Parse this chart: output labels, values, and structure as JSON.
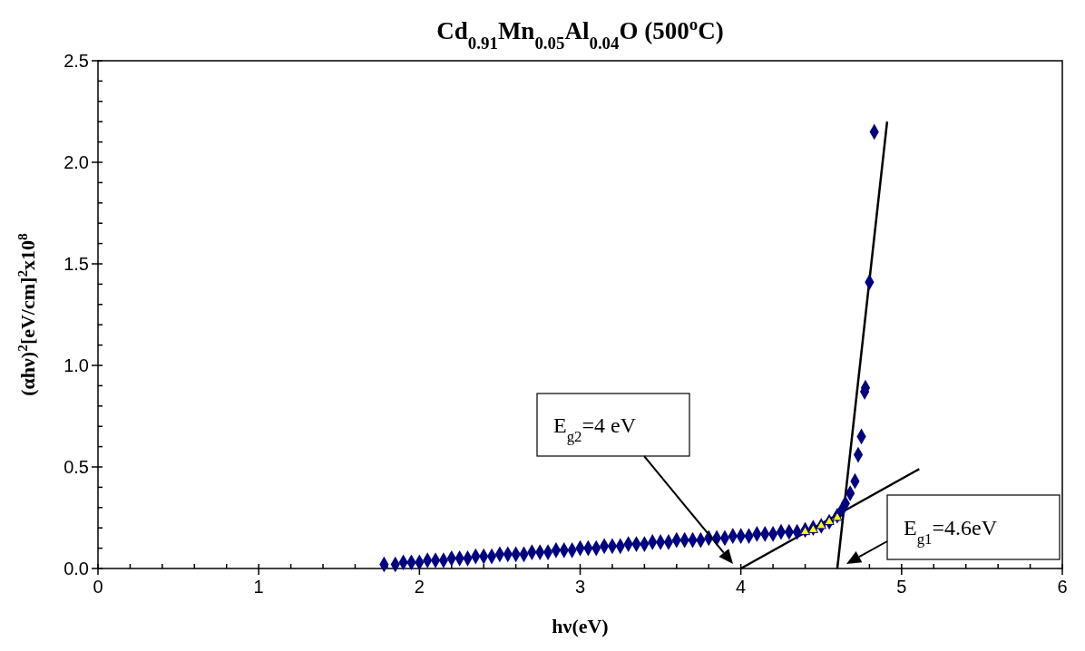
{
  "chart_data": {
    "type": "scatter",
    "title": "Cd$_{0.91}$Mn$_{0.05}$Al$_{0.04}$O (500$^{o}$C)",
    "xlabel": "hν(eV)",
    "ylabel": "(αhν)$^{2}$[eV/cm]$^{2}$x10$^{8}$",
    "xlim": [
      0,
      6
    ],
    "ylim": [
      0,
      2.5
    ],
    "xticks": [
      0,
      {
        "value": 0.2,
        "label": null
      },
      {
        "value": 0.4,
        "label": null
      },
      {
        "value": 0.6,
        "label": null
      },
      {
        "value": 0.8,
        "label": null
      },
      1,
      {
        "value": 1.2,
        "label": null
      },
      {
        "value": 1.4,
        "label": null
      },
      {
        "value": 1.6,
        "label": null
      },
      {
        "value": 1.8,
        "label": null
      },
      2,
      {
        "value": 2.2,
        "label": null
      },
      {
        "value": 2.4,
        "label": null
      },
      {
        "value": 2.6,
        "label": null
      },
      {
        "value": 2.8,
        "label": null
      },
      3,
      {
        "value": 3.2,
        "label": null
      },
      {
        "value": 3.4,
        "label": null
      },
      {
        "value": 3.6,
        "label": null
      },
      {
        "value": 3.8,
        "label": null
      },
      4,
      {
        "value": 4.2,
        "label": null
      },
      {
        "value": 4.4,
        "label": null
      },
      {
        "value": 4.6,
        "label": null
      },
      {
        "value": 4.8,
        "label": null
      },
      5,
      {
        "value": 5.2,
        "label": null
      },
      {
        "value": 5.4,
        "label": null
      },
      {
        "value": 5.6,
        "label": null
      },
      {
        "value": 5.8,
        "label": null
      },
      6
    ],
    "yticks": [
      {
        "value": 0,
        "label": "0.0"
      },
      {
        "value": 0.1,
        "label": null
      },
      {
        "value": 0.2,
        "label": null
      },
      {
        "value": 0.3,
        "label": null
      },
      {
        "value": 0.4,
        "label": null
      },
      0.5,
      {
        "value": 0.6,
        "label": null
      },
      {
        "value": 0.7,
        "label": null
      },
      {
        "value": 0.8,
        "label": null
      },
      {
        "value": 0.9,
        "label": null
      },
      {
        "value": 1,
        "label": "1.0"
      },
      {
        "value": 1.1,
        "label": null
      },
      {
        "value": 1.2,
        "label": null
      },
      {
        "value": 1.3,
        "label": null
      },
      {
        "value": 1.4,
        "label": null
      },
      1.5,
      {
        "value": 1.6,
        "label": null
      },
      {
        "value": 1.7,
        "label": null
      },
      {
        "value": 1.8,
        "label": null
      },
      {
        "value": 1.9,
        "label": null
      },
      {
        "value": 2,
        "label": "2.0"
      },
      {
        "value": 2.1,
        "label": null
      },
      {
        "value": 2.2,
        "label": null
      },
      {
        "value": 2.3,
        "label": null
      },
      {
        "value": 2.4,
        "label": null
      },
      2.5
    ],
    "grid": false,
    "series": [
      {
        "color": "#000080",
        "marker": "diamond",
        "x": [
          1.78,
          1.85,
          1.9,
          1.95,
          2.0,
          2.05,
          2.1,
          2.15,
          2.2,
          2.25,
          2.3,
          2.35,
          2.4,
          2.45,
          2.5,
          2.55,
          2.6,
          2.65,
          2.7,
          2.75,
          2.8,
          2.85,
          2.9,
          2.95,
          3.0,
          3.05,
          3.1,
          3.15,
          3.2,
          3.25,
          3.3,
          3.35,
          3.4,
          3.45,
          3.5,
          3.55,
          3.6,
          3.65,
          3.7,
          3.75,
          3.8,
          3.85,
          3.9,
          3.95,
          4.0,
          4.05,
          4.1,
          4.15,
          4.2,
          4.25,
          4.3,
          4.35,
          4.4,
          4.45,
          4.5,
          4.55,
          4.6,
          4.63,
          4.65,
          4.68,
          4.71,
          4.73,
          4.75,
          4.77,
          4.775,
          4.8,
          4.83
        ],
        "values": [
          0.02,
          0.02,
          0.03,
          0.03,
          0.03,
          0.04,
          0.04,
          0.04,
          0.05,
          0.05,
          0.05,
          0.06,
          0.06,
          0.06,
          0.07,
          0.07,
          0.07,
          0.07,
          0.08,
          0.08,
          0.08,
          0.09,
          0.09,
          0.09,
          0.1,
          0.1,
          0.1,
          0.11,
          0.11,
          0.11,
          0.12,
          0.12,
          0.12,
          0.13,
          0.13,
          0.13,
          0.14,
          0.14,
          0.14,
          0.14,
          0.15,
          0.15,
          0.15,
          0.16,
          0.16,
          0.16,
          0.17,
          0.17,
          0.17,
          0.18,
          0.18,
          0.18,
          0.19,
          0.2,
          0.21,
          0.23,
          0.26,
          0.29,
          0.32,
          0.37,
          0.43,
          0.56,
          0.65,
          0.87,
          0.89,
          1.41,
          2.15
        ]
      },
      {
        "color": "#ffff00",
        "marker": "triangle",
        "x": [
          4.4,
          4.45,
          4.5,
          4.55,
          4.6
        ],
        "values": [
          0.18,
          0.19,
          0.21,
          0.23,
          0.25
        ]
      },
      {
        "type": "line",
        "color": "#000000",
        "x": [
          4.6,
          4.91
        ],
        "values": [
          0,
          2.2
        ]
      },
      {
        "type": "line",
        "color": "#000000",
        "x": [
          4.0,
          5.11
        ],
        "values": [
          0,
          0.49
        ]
      }
    ],
    "annotations": [
      "E$_{g2}$=4 eV",
      "E$_{g1}$=4.6eV"
    ]
  }
}
